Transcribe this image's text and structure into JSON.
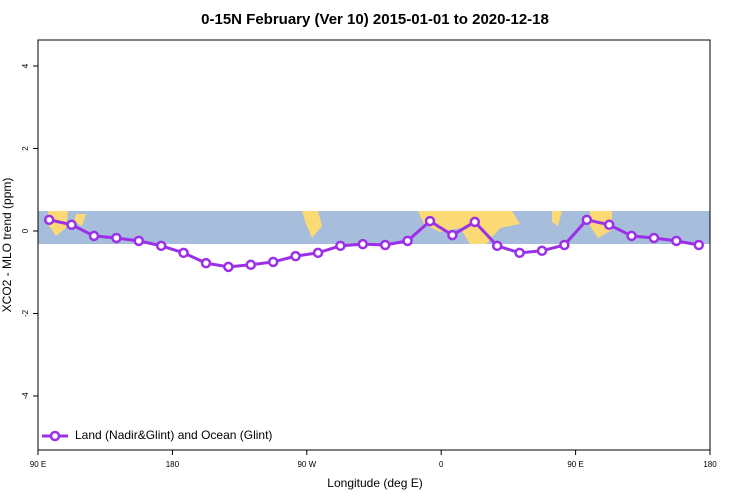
{
  "chart_data": {
    "type": "line",
    "title": "0-15N February (Ver 10)   2015-01-01 to 2020-12-18",
    "x_label": "Longitude (deg E)",
    "y_label": "XCO2 - MLO trend (ppm)",
    "x": [
      97.5,
      112.5,
      127.5,
      142.5,
      157.5,
      172.5,
      187.5,
      202.5,
      217.5,
      232.5,
      247.5,
      262.5,
      277.5,
      292.5,
      307.5,
      322.5,
      337.5,
      352.5,
      367.5,
      382.5,
      397.5,
      412.5,
      427.5,
      442.5,
      457.5,
      472.5,
      487.5,
      502.5,
      517.5,
      532.5
    ],
    "series": [
      {
        "name": "Land (Nadir&Glint) and Ocean (Glint)",
        "color": "#9b30e8",
        "values": [
          0.27,
          0.15,
          -0.12,
          -0.17,
          -0.24,
          -0.36,
          -0.53,
          -0.78,
          -0.87,
          -0.82,
          -0.75,
          -0.61,
          -0.53,
          -0.36,
          -0.32,
          -0.34,
          -0.24,
          0.24,
          -0.1,
          0.22,
          -0.36,
          -0.53,
          -0.48,
          -0.34,
          0.27,
          0.15,
          -0.12,
          -0.17,
          -0.24,
          -0.34
        ]
      }
    ],
    "xlim": [
      90,
      540
    ],
    "xticks": [
      {
        "value": 90,
        "label": "90 E"
      },
      {
        "value": 180,
        "label": "180"
      },
      {
        "value": 270,
        "label": "90 W"
      },
      {
        "value": 360,
        "label": "0"
      },
      {
        "value": 450,
        "label": "90 E"
      },
      {
        "value": 540,
        "label": "180"
      }
    ],
    "ylim": [
      -5.31,
      4.63
    ],
    "yticks": [
      -4,
      -2,
      0,
      2,
      4
    ],
    "legend": "bottom-left"
  }
}
